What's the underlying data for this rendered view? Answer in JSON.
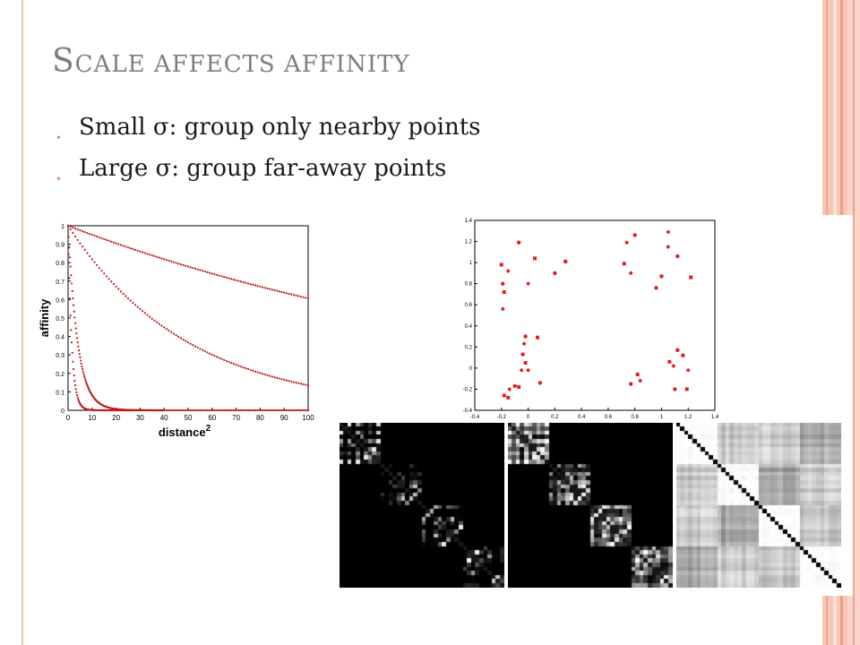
{
  "slide": {
    "title_cap": "S",
    "title_rest": "cale affects affinity",
    "bullets": [
      "Small σ: group only nearby points",
      "Large σ: group far-away points"
    ]
  },
  "chart_data": [
    {
      "type": "scatter",
      "ylabel": "affinity",
      "xlabel": "distance",
      "xlabel_superscript": "2",
      "x_ticks": [
        "0",
        "10",
        "20",
        "30",
        "40",
        "50",
        "60",
        "70",
        "80",
        "90",
        "100"
      ],
      "y_ticks": [
        "0",
        "0.1",
        "0.2",
        "0.3",
        "0.4",
        "0.5",
        "0.6",
        "0.7",
        "0.8",
        "0.9",
        "1"
      ],
      "xlim": [
        0,
        100
      ],
      "ylim": [
        0,
        1
      ],
      "series_color": "#c01818",
      "decay_scales": [
        1.5,
        4,
        50,
        200
      ],
      "series_end_values": [
        0.0,
        0.0,
        0.14,
        0.61
      ]
    },
    {
      "type": "scatter",
      "x_ticks": [
        "-0.4",
        "-0.2",
        "0",
        "0.2",
        "0.4",
        "0.6",
        "0.8",
        "1",
        "1.2",
        "1.4"
      ],
      "y_ticks": [
        "-0.4",
        "-0.2",
        "0",
        "0.2",
        "0.4",
        "0.6",
        "0.8",
        "1",
        "1.2",
        "1.4"
      ],
      "xlim": [
        -0.4,
        1.4
      ],
      "ylim": [
        -0.4,
        1.4
      ],
      "point_color": "#e02020",
      "points": [
        [
          -0.2,
          0.98
        ],
        [
          -0.15,
          0.92
        ],
        [
          -0.07,
          1.19
        ],
        [
          0.05,
          1.04
        ],
        [
          0.0,
          0.8
        ],
        [
          -0.19,
          0.8
        ],
        [
          -0.18,
          0.72
        ],
        [
          -0.19,
          0.56
        ],
        [
          0.2,
          0.9
        ],
        [
          0.28,
          1.01
        ],
        [
          0.74,
          1.19
        ],
        [
          0.8,
          1.26
        ],
        [
          0.72,
          0.99
        ],
        [
          0.77,
          0.9
        ],
        [
          0.96,
          0.76
        ],
        [
          1.0,
          0.87
        ],
        [
          1.05,
          1.29
        ],
        [
          1.12,
          1.06
        ],
        [
          1.22,
          0.86
        ],
        [
          1.05,
          1.15
        ],
        [
          -0.02,
          0.3
        ],
        [
          0.07,
          0.29
        ],
        [
          -0.03,
          0.23
        ],
        [
          -0.04,
          0.13
        ],
        [
          -0.02,
          0.05
        ],
        [
          -0.05,
          -0.02
        ],
        [
          -0.1,
          -0.17
        ],
        [
          -0.07,
          -0.18
        ],
        [
          -0.14,
          -0.2
        ],
        [
          -0.18,
          -0.26
        ],
        [
          -0.15,
          -0.28
        ],
        [
          0.0,
          -0.02
        ],
        [
          0.09,
          -0.14
        ],
        [
          0.82,
          -0.06
        ],
        [
          0.84,
          -0.12
        ],
        [
          0.77,
          -0.15
        ],
        [
          1.06,
          0.06
        ],
        [
          1.09,
          0.02
        ],
        [
          1.12,
          0.17
        ],
        [
          1.16,
          0.12
        ],
        [
          1.2,
          -0.02
        ],
        [
          1.1,
          -0.2
        ],
        [
          1.19,
          -0.2
        ]
      ]
    }
  ],
  "matrices": {
    "size": 40,
    "block_size": 10,
    "colors": {
      "dark": "#000000",
      "light": "#ffffff"
    }
  }
}
